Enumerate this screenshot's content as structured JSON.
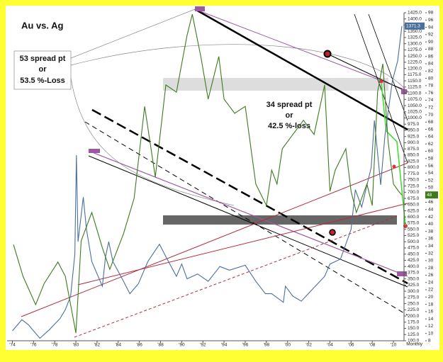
{
  "chart_data": {
    "type": "line",
    "title": "Au vs. Ag",
    "x_label": "Monthly",
    "annotations": [
      [
        "53 spread pt",
        "or",
        "53.5 %-Loss"
      ],
      [
        "34 spread pt",
        "or",
        "42.5 %-loss"
      ]
    ],
    "xlim": [
      1973.5,
      2011.0
    ],
    "xticks": [
      {
        "value": 1974,
        "label": "'74"
      },
      {
        "value": 1976,
        "label": "'76"
      },
      {
        "value": 1978,
        "label": "'78"
      },
      {
        "value": 1980,
        "label": "'80"
      },
      {
        "value": 1982,
        "label": "'82"
      },
      {
        "value": 1984,
        "label": "'84"
      },
      {
        "value": 1986,
        "label": "'86"
      },
      {
        "value": 1988,
        "label": "'88"
      },
      {
        "value": 1990,
        "label": "'90"
      },
      {
        "value": 1992,
        "label": "'92"
      },
      {
        "value": 1994,
        "label": "'94"
      },
      {
        "value": 1996,
        "label": "'96"
      },
      {
        "value": 1998,
        "label": "'98"
      },
      {
        "value": 2000,
        "label": "'00"
      },
      {
        "value": 2002,
        "label": "'02"
      },
      {
        "value": 2004,
        "label": "'04"
      },
      {
        "value": 2006,
        "label": "'06"
      },
      {
        "value": 2008,
        "label": "'08"
      },
      {
        "value": 2010,
        "label": "'10"
      }
    ],
    "ylim": [
      100,
      1425
    ],
    "yticks": [
      {
        "value": 1425,
        "label": "1425.0"
      },
      {
        "value": 1400,
        "label": "1400.0"
      },
      {
        "value": 1375,
        "label": "1375.0"
      },
      {
        "value": 1350,
        "label": "1350.0"
      },
      {
        "value": 1325,
        "label": "1325.0"
      },
      {
        "value": 1300,
        "label": "1300.0"
      },
      {
        "value": 1275,
        "label": "1275.0"
      },
      {
        "value": 1250,
        "label": "1250.0"
      },
      {
        "value": 1225,
        "label": "1225.0"
      },
      {
        "value": 1200,
        "label": "1200.0"
      },
      {
        "value": 1175,
        "label": "1175.0"
      },
      {
        "value": 1150,
        "label": "1150.0"
      },
      {
        "value": 1125,
        "label": "1125.0"
      },
      {
        "value": 1100,
        "label": "1100.0"
      },
      {
        "value": 1075,
        "label": "1075.0"
      },
      {
        "value": 1050,
        "label": "1050.0"
      },
      {
        "value": 1025,
        "label": "1025.0"
      },
      {
        "value": 1000,
        "label": "1000.0"
      },
      {
        "value": 975,
        "label": "975.0"
      },
      {
        "value": 950,
        "label": "950.0"
      },
      {
        "value": 925,
        "label": "925.0"
      },
      {
        "value": 900,
        "label": "900.0"
      },
      {
        "value": 875,
        "label": "875.0"
      },
      {
        "value": 850,
        "label": "850.0"
      },
      {
        "value": 825,
        "label": "825.0"
      },
      {
        "value": 800,
        "label": "800.0"
      },
      {
        "value": 775,
        "label": "775.0"
      },
      {
        "value": 750,
        "label": "750.0"
      },
      {
        "value": 725,
        "label": "725.0"
      },
      {
        "value": 700,
        "label": "700.0"
      },
      {
        "value": 675,
        "label": "675.0"
      },
      {
        "value": 650,
        "label": "650.0"
      },
      {
        "value": 625,
        "label": "625.0"
      },
      {
        "value": 600,
        "label": "600.0"
      },
      {
        "value": 575,
        "label": "575.0"
      },
      {
        "value": 550,
        "label": "550.0"
      },
      {
        "value": 525,
        "label": "525.0"
      },
      {
        "value": 500,
        "label": "500.0"
      },
      {
        "value": 475,
        "label": "475.0"
      },
      {
        "value": 450,
        "label": "450.0"
      },
      {
        "value": 425,
        "label": "425.0"
      },
      {
        "value": 400,
        "label": "400.0"
      },
      {
        "value": 375,
        "label": "375.0"
      },
      {
        "value": 350,
        "label": "350.0"
      },
      {
        "value": 325,
        "label": "325.0"
      },
      {
        "value": 300,
        "label": "300.0"
      },
      {
        "value": 275,
        "label": "275.0"
      },
      {
        "value": 250,
        "label": "250.0"
      },
      {
        "value": 225,
        "label": "225.0"
      },
      {
        "value": 200,
        "label": "200.0"
      },
      {
        "value": 175,
        "label": "175.0"
      },
      {
        "value": 150,
        "label": "150.0"
      },
      {
        "value": 125,
        "label": "125.0"
      },
      {
        "value": 100,
        "label": "100.0"
      }
    ],
    "y2lim": [
      8,
      98
    ],
    "y2ticks": [
      98,
      96,
      94,
      92,
      90,
      88,
      86,
      84,
      82,
      80,
      78,
      76,
      74,
      72,
      70,
      68,
      66,
      64,
      62,
      60,
      58,
      56,
      54,
      52,
      50,
      48,
      46,
      44,
      42,
      40,
      38,
      36,
      34,
      32,
      30,
      28,
      26,
      24,
      22,
      20,
      18,
      16,
      14,
      12,
      10,
      8
    ],
    "series": [
      {
        "color": "#4a6f9c",
        "axis": "y",
        "x": [
          1974.0,
          1974.9,
          1975.5,
          1976.6,
          1977.5,
          1978.5,
          1979.0,
          1979.5,
          1979.9,
          1980.05,
          1980.2,
          1980.7,
          1981.0,
          1981.5,
          1982.5,
          1982.8,
          1983.1,
          1983.5,
          1984.5,
          1985.1,
          1985.9,
          1986.8,
          1987.9,
          1988.5,
          1989.5,
          1990.0,
          1990.5,
          1991.5,
          1992.5,
          1993.6,
          1994.5,
          1996.0,
          1997.0,
          1997.9,
          1998.5,
          1999.6,
          1999.8,
          2000.5,
          2001.3,
          2002.5,
          2003.5,
          2004.0,
          2005.0,
          2006.0,
          2006.4,
          2007.0,
          2007.9,
          2008.2,
          2008.8,
          2009.2,
          2009.9,
          2010.4,
          2010.8
        ],
        "values": [
          140,
          185,
          165,
          110,
          145,
          190,
          225,
          280,
          450,
          850,
          500,
          680,
          550,
          420,
          320,
          440,
          500,
          420,
          340,
          290,
          330,
          420,
          490,
          440,
          360,
          410,
          350,
          370,
          340,
          400,
          385,
          405,
          340,
          290,
          290,
          255,
          320,
          280,
          260,
          315,
          360,
          410,
          430,
          550,
          710,
          640,
          800,
          990,
          730,
          930,
          1150,
          1230,
          1371.3
        ],
        "value_labels": [
          null,
          null,
          null,
          null,
          null,
          null,
          null,
          null,
          null,
          null,
          null,
          null,
          null,
          null,
          null,
          null,
          null,
          null,
          null,
          null,
          null,
          null,
          null,
          null,
          null,
          null,
          null,
          null,
          null,
          null,
          null,
          null,
          null,
          null,
          null,
          null,
          null,
          null,
          null,
          null,
          null,
          null,
          null,
          null,
          null,
          null,
          null,
          null,
          null,
          null,
          null,
          null,
          "1371.3"
        ]
      },
      {
        "color": "#3d7a1e",
        "axis": "y2",
        "x": [
          1974.1,
          1975.0,
          1976.2,
          1977.0,
          1978.3,
          1979.0,
          1980.0,
          1980.5,
          1981.5,
          1982.5,
          1983.2,
          1984.5,
          1985.5,
          1986.5,
          1987.5,
          1988.5,
          1989.5,
          1990.5,
          1991.0,
          1991.8,
          1992.5,
          1993.5,
          1994.0,
          1995.0,
          1996.0,
          1997.0,
          1998.0,
          1998.5,
          1999.0,
          1999.5,
          2000.5,
          2001.5,
          2002.5,
          2003.5,
          2004.0,
          2004.5,
          2005.5,
          2006.0,
          2006.5,
          2007.5,
          2008.0,
          2008.5,
          2009.0,
          2009.5,
          2010.0,
          2010.5,
          2010.8
        ],
        "values": [
          34.4,
          25.7,
          17.9,
          23.7,
          29.6,
          25.7,
          10.1,
          35.4,
          43.2,
          33.5,
          27.6,
          37.4,
          47.1,
          72.3,
          52.9,
          78.2,
          76.2,
          91.8,
          97.6,
          86,
          74.3,
          86,
          74.3,
          70.4,
          72.3,
          51,
          45.1,
          54.8,
          51,
          60.7,
          64.6,
          68.5,
          64.6,
          78.2,
          49,
          54.8,
          60.7,
          49,
          43.2,
          51,
          45.1,
          76.2,
          84,
          62.6,
          51,
          49,
          48
        ],
        "value_labels": [
          null,
          null,
          null,
          null,
          null,
          null,
          null,
          null,
          null,
          null,
          null,
          null,
          null,
          null,
          null,
          null,
          null,
          null,
          null,
          null,
          null,
          null,
          null,
          null,
          null,
          null,
          null,
          null,
          null,
          null,
          null,
          null,
          null,
          null,
          null,
          null,
          null,
          null,
          null,
          null,
          null,
          null,
          null,
          null,
          null,
          null,
          "48"
        ]
      }
    ]
  }
}
